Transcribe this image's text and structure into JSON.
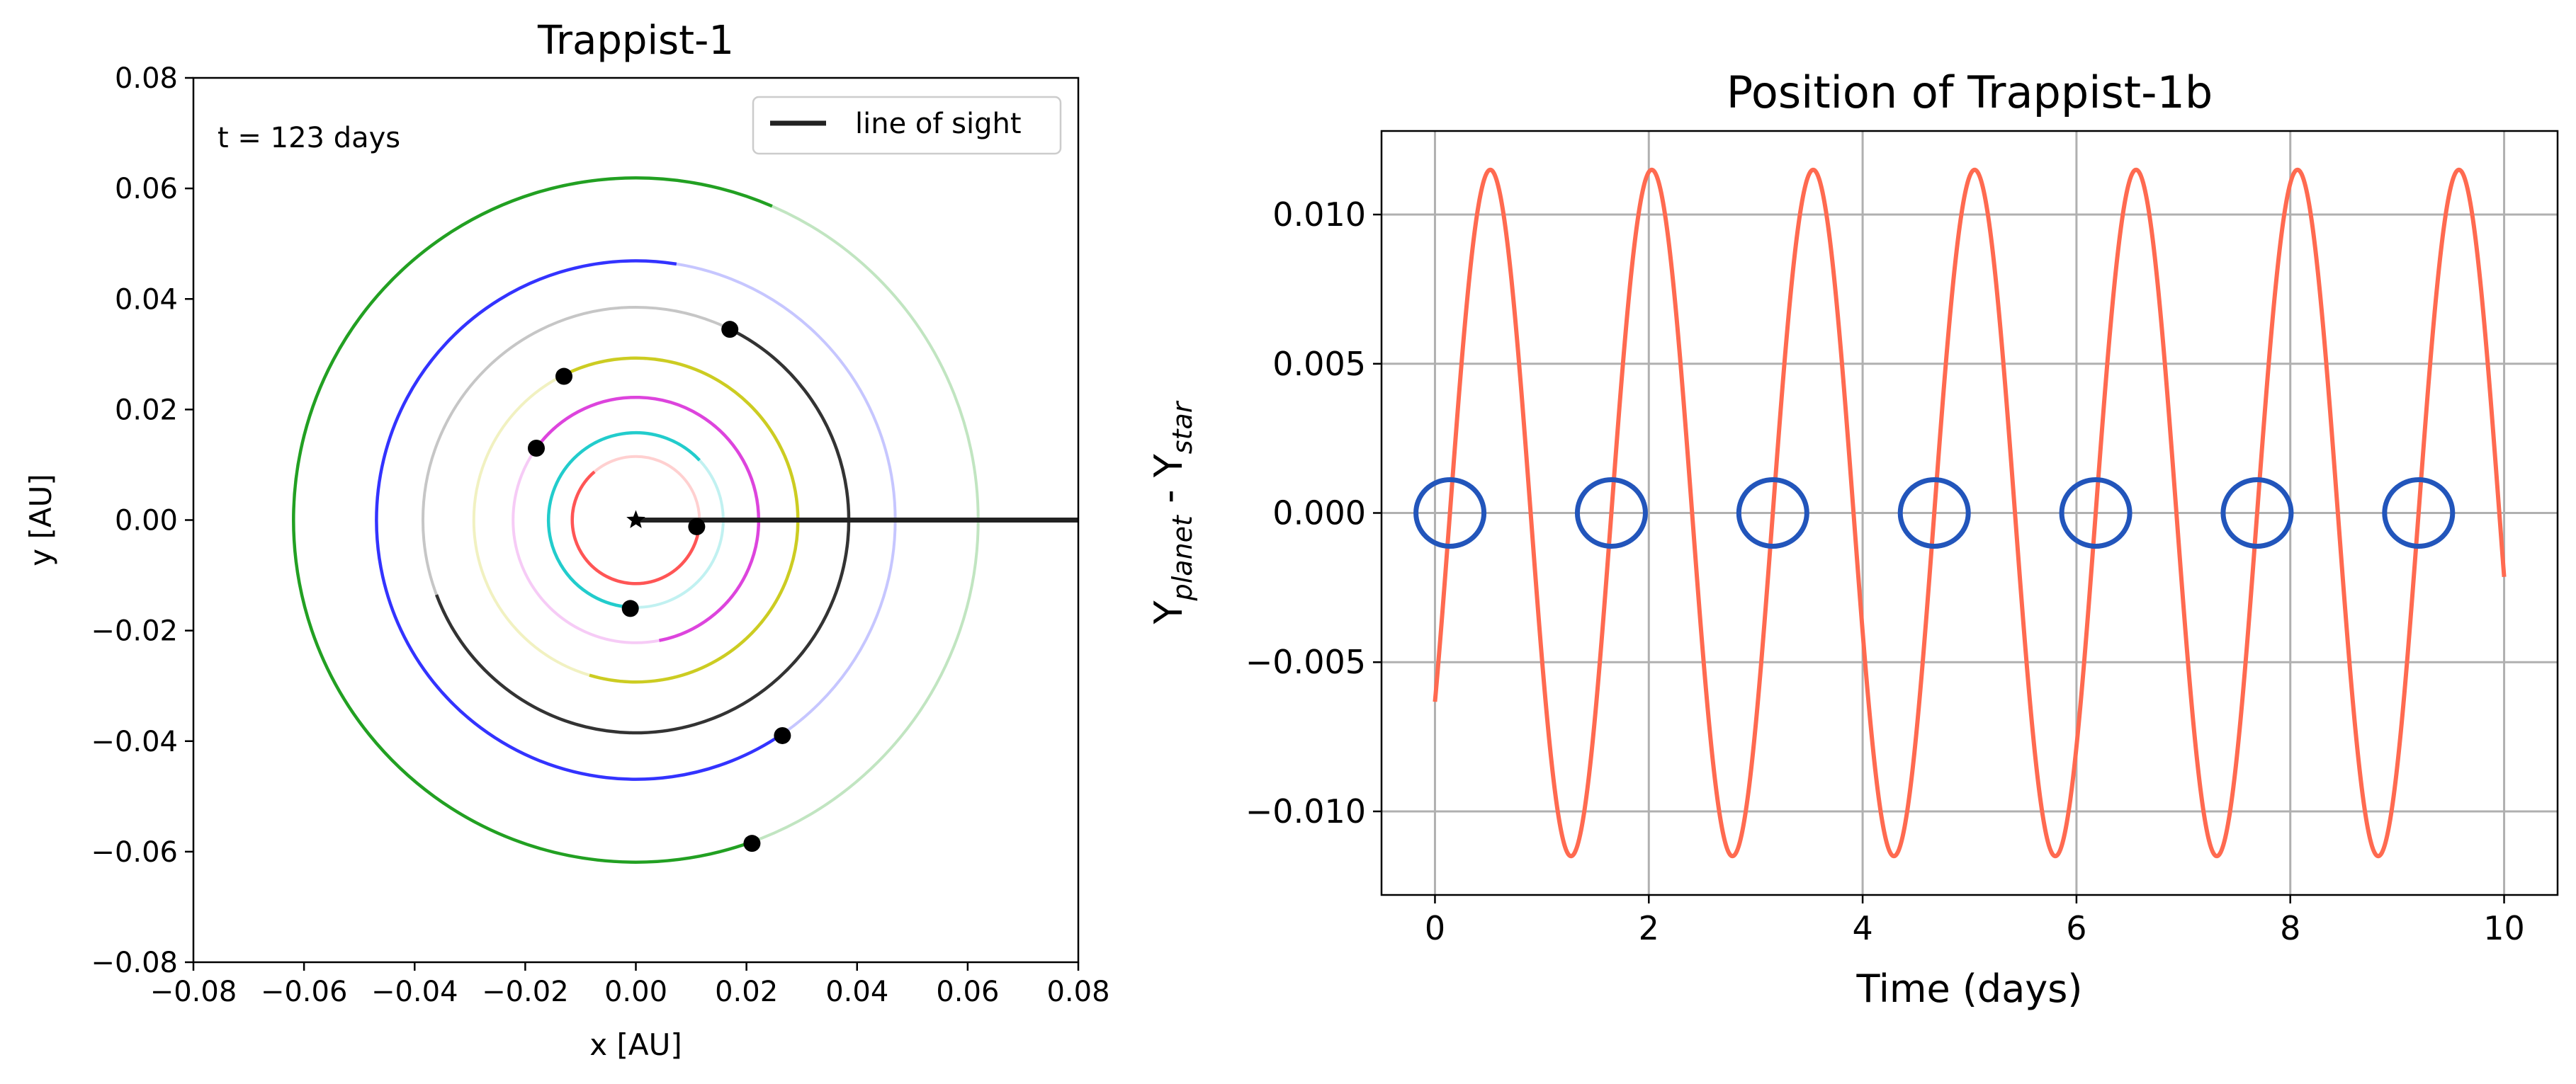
{
  "chart_data": [
    {
      "type": "scatter",
      "title": "Trappist-1",
      "xlabel": "x [AU]",
      "ylabel": "y [AU]",
      "xlim": [
        -0.08,
        0.08
      ],
      "ylim": [
        -0.08,
        0.08
      ],
      "xticks": [
        -0.08,
        -0.06,
        -0.04,
        -0.02,
        0.0,
        0.02,
        0.04,
        0.06,
        0.08
      ],
      "yticks": [
        -0.08,
        -0.06,
        -0.04,
        -0.02,
        0.0,
        0.02,
        0.04,
        0.06,
        0.08
      ],
      "x_tick_labels": [
        "−0.08",
        "−0.06",
        "−0.04",
        "−0.02",
        "0.00",
        "0.02",
        "0.04",
        "0.06",
        "0.08"
      ],
      "y_tick_labels": [
        "−0.08",
        "−0.06",
        "−0.04",
        "−0.02",
        "0.00",
        "0.02",
        "0.04",
        "0.06",
        "0.08"
      ],
      "grid": false,
      "annotation": "t = 123 days",
      "legend": {
        "placement": "top-right",
        "entries": [
          {
            "label": "line of sight",
            "color": "#222222"
          }
        ]
      },
      "line_of_sight": {
        "x": [
          0.0,
          0.08
        ],
        "y": [
          0.0,
          0.0
        ],
        "color": "#222222"
      },
      "star": {
        "x": 0.0,
        "y": 0.0,
        "marker": "star"
      },
      "orbits": [
        {
          "radius": 0.0115,
          "color": "#ff5555",
          "planet": [
            0.011,
            -0.0012
          ]
        },
        {
          "radius": 0.0158,
          "color": "#22cccc",
          "planet": [
            -0.001,
            -0.016
          ]
        },
        {
          "radius": 0.0222,
          "color": "#dd44dd",
          "planet": [
            -0.018,
            0.013
          ]
        },
        {
          "radius": 0.0293,
          "color": "#cccc22",
          "planet": [
            -0.013,
            0.026
          ]
        },
        {
          "radius": 0.0385,
          "color": "#333333",
          "planet": [
            0.017,
            0.0345
          ]
        },
        {
          "radius": 0.0469,
          "color": "#3333ff",
          "planet": [
            0.0265,
            -0.039
          ]
        },
        {
          "radius": 0.0619,
          "color": "#22a022",
          "planet": [
            0.021,
            -0.0585
          ]
        }
      ]
    },
    {
      "type": "line",
      "title": "Position of Trappist-1b",
      "xlabel": "Time (days)",
      "ylabel_main": "Y",
      "ylabel_sub1": "planet",
      "ylabel_mid": " - Y",
      "ylabel_sub2": "star",
      "xlim": [
        -0.5,
        10.5
      ],
      "ylim": [
        -0.0128,
        0.0128
      ],
      "xticks": [
        0,
        2,
        4,
        6,
        8,
        10
      ],
      "yticks": [
        -0.01,
        -0.005,
        0.0,
        0.005,
        0.01
      ],
      "x_tick_labels": [
        "0",
        "2",
        "4",
        "6",
        "8",
        "10"
      ],
      "y_tick_labels": [
        "−0.010",
        "−0.005",
        "0.000",
        "0.005",
        "0.010"
      ],
      "grid": true,
      "series": [
        {
          "amplitude": 0.0115,
          "period_days": 1.51,
          "phase_offset_days": 0.14,
          "t_range": [
            0,
            10
          ],
          "color": "#ff6a50"
        }
      ],
      "highlighted_crossings": {
        "x": [
          0.14,
          1.65,
          3.16,
          4.67,
          6.18,
          7.69,
          9.2
        ],
        "y": 0.0,
        "color": "#2255bb"
      }
    }
  ]
}
